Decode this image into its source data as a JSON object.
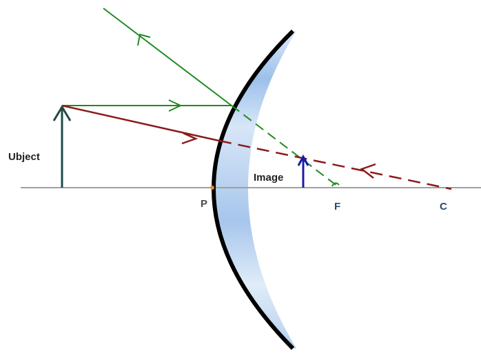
{
  "labels": {
    "object": "Ubject",
    "image": "Image",
    "pole": "P",
    "focus": "F",
    "centre": "C"
  }
}
